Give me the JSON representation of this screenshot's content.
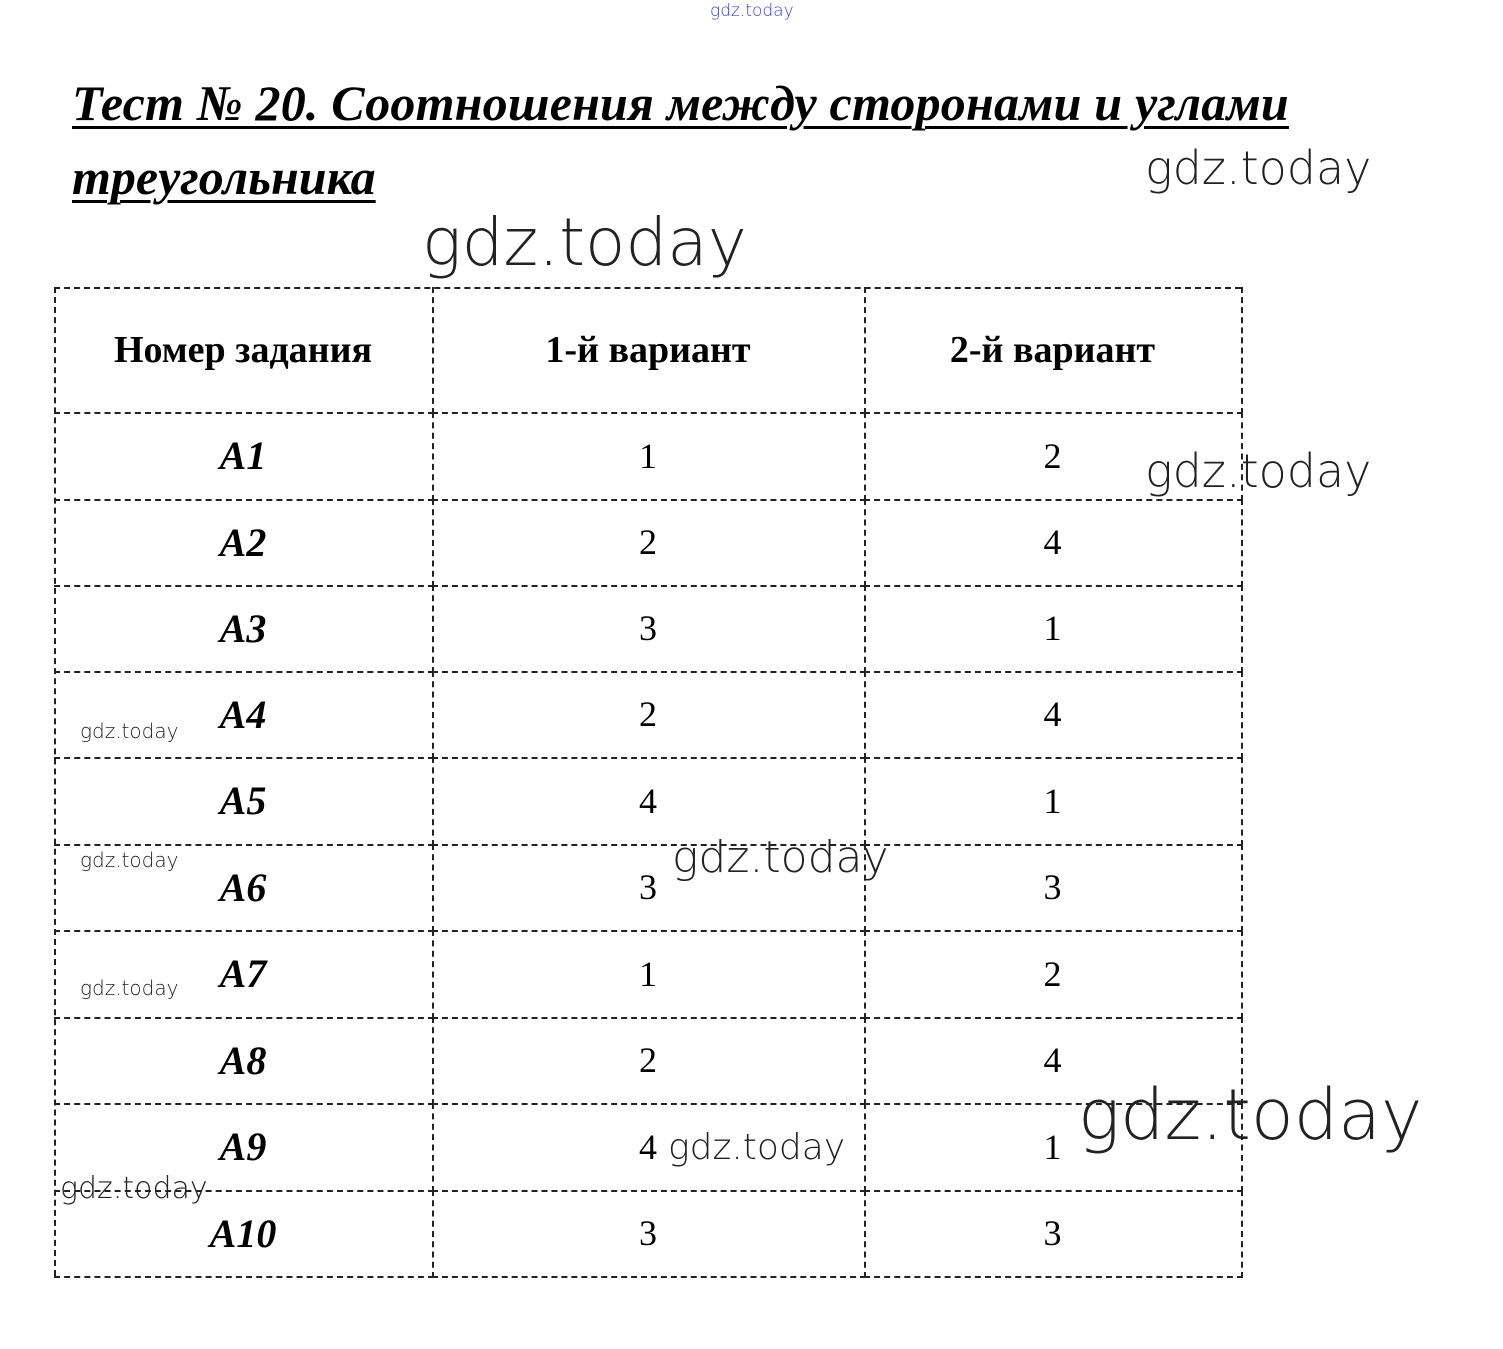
{
  "title": {
    "line1": "Тест № 20. Соотношения между сторонами и углами",
    "line2": "треугольника"
  },
  "table": {
    "headers": [
      "Номер задания",
      "1-й вариант",
      "2-й вариант"
    ],
    "rows": [
      [
        "A1",
        "1",
        "2"
      ],
      [
        "A2",
        "2",
        "4"
      ],
      [
        "A3",
        "3",
        "1"
      ],
      [
        "A4",
        "2",
        "4"
      ],
      [
        "A5",
        "4",
        "1"
      ],
      [
        "A6",
        "3",
        "3"
      ],
      [
        "A7",
        "1",
        "2"
      ],
      [
        "A8",
        "2",
        "4"
      ],
      [
        "A9",
        "4",
        "1"
      ],
      [
        "A10",
        "3",
        "3"
      ]
    ]
  },
  "watermark": "gdz.today",
  "colors": {
    "top_watermark": "#3a3ad8",
    "border": "#222222"
  }
}
